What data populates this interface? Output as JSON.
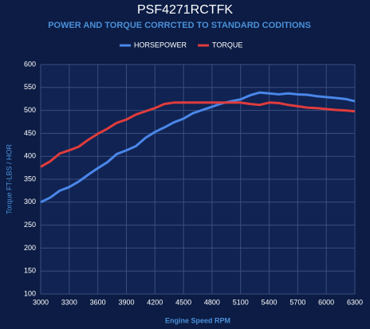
{
  "chart_data": {
    "type": "line",
    "title": "PSF4271RCTFK",
    "subtitle": "POWER AND TORQUE CORRCTED TO STANDARD CODITIONS",
    "x_label": "Engine Speed RPM",
    "y_label": "Torque FT-LBS / HOR",
    "x": [
      3000,
      3100,
      3200,
      3300,
      3400,
      3500,
      3600,
      3700,
      3800,
      3900,
      4000,
      4100,
      4200,
      4300,
      4400,
      4500,
      4600,
      4700,
      4800,
      4900,
      5000,
      5100,
      5200,
      5300,
      5400,
      5500,
      5600,
      5700,
      5800,
      5900,
      6000,
      6100,
      6200,
      6300
    ],
    "series": [
      {
        "name": "HORSEPOWER",
        "color": "#4a86e8",
        "values": [
          300,
          310,
          325,
          333,
          345,
          360,
          374,
          387,
          405,
          413,
          422,
          440,
          453,
          463,
          474,
          482,
          494,
          501,
          508,
          515,
          520,
          524,
          533,
          539,
          537,
          535,
          537,
          535,
          534,
          531,
          529,
          527,
          525,
          520
        ]
      },
      {
        "name": "TORQUE",
        "color": "#e03c3c",
        "values": [
          377,
          389,
          406,
          413,
          421,
          436,
          449,
          460,
          473,
          480,
          491,
          498,
          505,
          514,
          517,
          517,
          517,
          517,
          517,
          517,
          517,
          517,
          514,
          512,
          517,
          516,
          512,
          509,
          506,
          505,
          503,
          501,
          500,
          498
        ]
      }
    ],
    "xlim": [
      3000,
      6300
    ],
    "xticks": [
      3000,
      3300,
      3600,
      3900,
      4200,
      4500,
      4800,
      5100,
      5400,
      5700,
      6000,
      6300
    ],
    "ylim": [
      100,
      600
    ],
    "yticks": [
      100,
      150,
      200,
      250,
      300,
      350,
      400,
      450,
      500,
      550,
      600
    ],
    "grid": true,
    "legend": "top"
  }
}
